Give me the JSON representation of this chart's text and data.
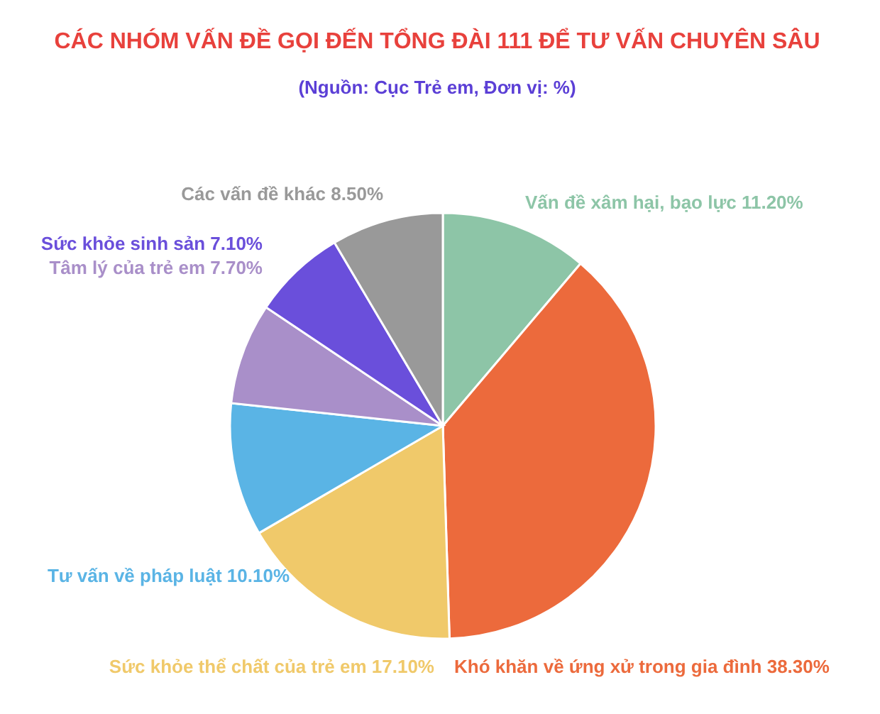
{
  "chart_data": {
    "type": "pie",
    "title": "CÁC NHÓM VẤN ĐỀ GỌI ĐẾN TỔNG ĐÀI 111 ĐỂ TƯ VẤN CHUYÊN SÂU",
    "subtitle": "(Nguồn: Cục Trẻ em, Đơn vị: %)",
    "categories": [
      "Vấn đề xâm hại, bạo lực",
      "Khó khăn về ứng xử trong gia đình",
      "Sức khỏe thể chất của trẻ em",
      "Tư vấn về pháp luật",
      "Tâm lý của trẻ em",
      "Sức khỏe sinh sản",
      "Các vấn đề khác"
    ],
    "values": [
      11.2,
      38.3,
      17.1,
      10.1,
      7.7,
      7.1,
      8.5
    ],
    "value_labels": [
      "11.20%",
      "38.30%",
      "17.10%",
      "10.10%",
      "7.70%",
      "7.10%",
      "8.50%"
    ],
    "colors": [
      "#8dc5a7",
      "#ec6a3c",
      "#f0c96a",
      "#5ab4e5",
      "#a98fc9",
      "#6a4fdb",
      "#999999"
    ]
  }
}
